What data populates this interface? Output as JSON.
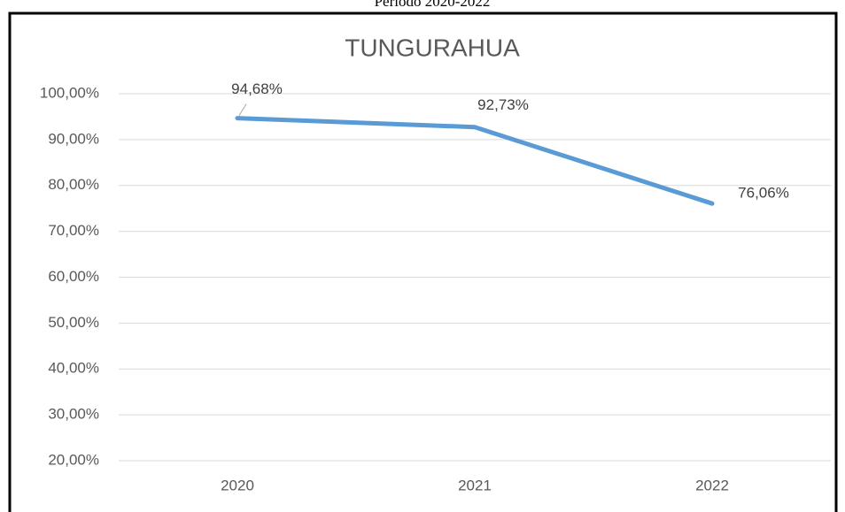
{
  "chart_data": {
    "type": "line",
    "subtitle": "Período 2020-2022",
    "title": "TUNGURAHUA",
    "categories": [
      "2020",
      "2021",
      "2022"
    ],
    "series": [
      {
        "name": "TUNGURAHUA",
        "color": "#5b9bd5",
        "values": [
          94.68,
          92.73,
          76.06
        ],
        "value_labels": [
          "94,68%",
          "92,73%",
          "76,06%"
        ]
      }
    ],
    "ylim": [
      20,
      100
    ],
    "yticks": [
      {
        "value": 20,
        "label": "20,00%"
      },
      {
        "value": 30,
        "label": "30,00%"
      },
      {
        "value": 40,
        "label": "40,00%"
      },
      {
        "value": 50,
        "label": "50,00%"
      },
      {
        "value": 60,
        "label": "60,00%"
      },
      {
        "value": 70,
        "label": "70,00%"
      },
      {
        "value": 80,
        "label": "80,00%"
      },
      {
        "value": 90,
        "label": "90,00%"
      },
      {
        "value": 100,
        "label": "100,00%"
      }
    ],
    "grid": true
  }
}
